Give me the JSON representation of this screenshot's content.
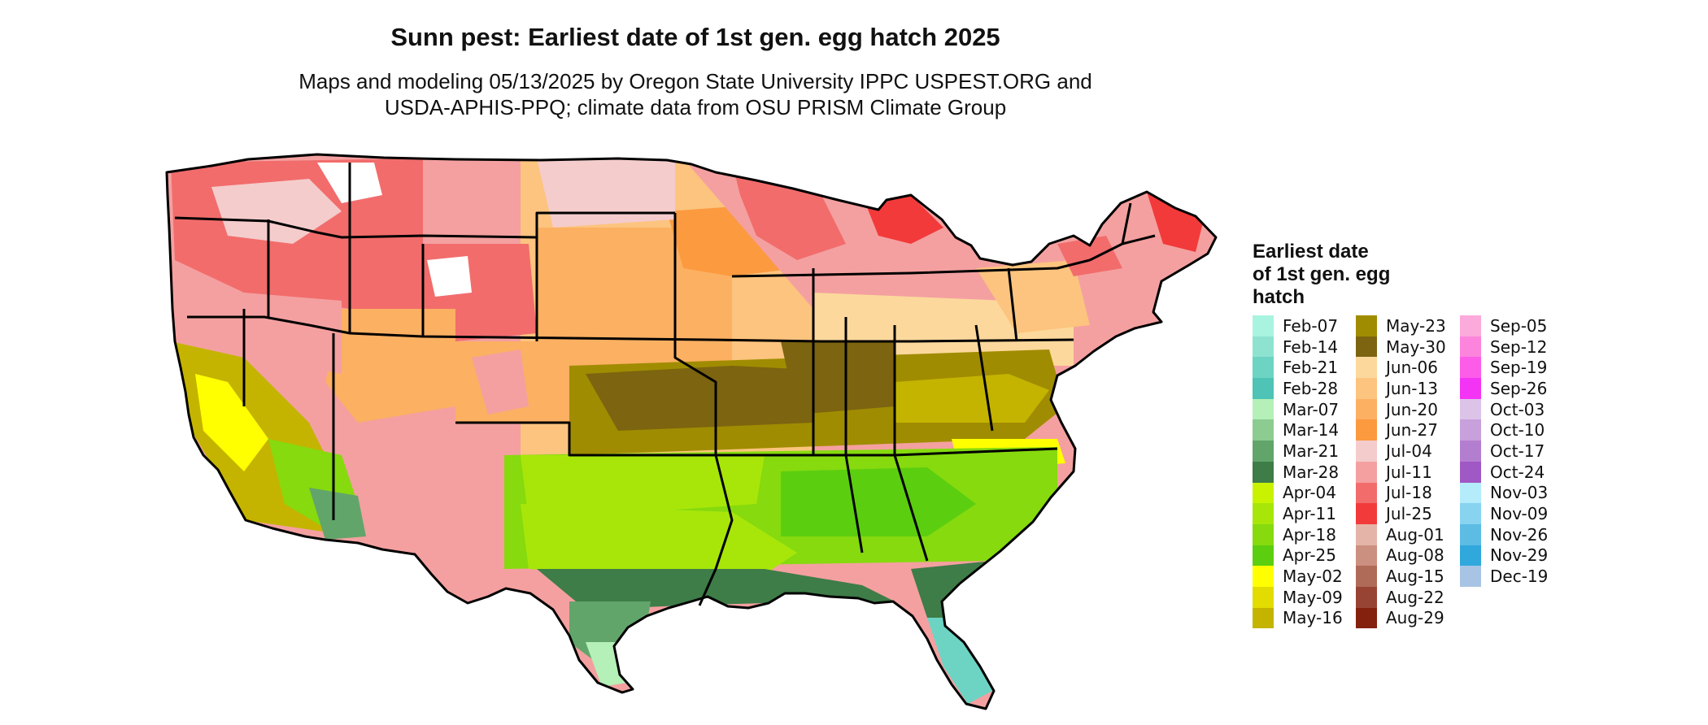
{
  "title": "Sunn pest: Earliest date of 1st gen. egg hatch 2025",
  "subtitle": [
    "Maps and modeling 05/13/2025 by Oregon State University IPPC USPEST.ORG and",
    "USDA-APHIS-PPQ; climate data from OSU PRISM Climate Group"
  ],
  "legend": {
    "title": [
      "Earliest date",
      "of 1st gen. egg",
      "hatch"
    ],
    "columns": [
      [
        {
          "label": "Feb-07",
          "color": "#a8f4e0"
        },
        {
          "label": "Feb-14",
          "color": "#8ee3d0"
        },
        {
          "label": "Feb-21",
          "color": "#6dd4c4"
        },
        {
          "label": "Feb-28",
          "color": "#4ec3b6"
        },
        {
          "label": "Mar-07",
          "color": "#b4f0b8"
        },
        {
          "label": "Mar-14",
          "color": "#8ccc90"
        },
        {
          "label": "Mar-21",
          "color": "#62a56a"
        },
        {
          "label": "Mar-28",
          "color": "#3e7c48"
        },
        {
          "label": "Apr-04",
          "color": "#c8f200"
        },
        {
          "label": "Apr-11",
          "color": "#a8e60a"
        },
        {
          "label": "Apr-18",
          "color": "#86da0e"
        },
        {
          "label": "Apr-25",
          "color": "#5cce10"
        },
        {
          "label": "May-02",
          "color": "#ffff00"
        },
        {
          "label": "May-09",
          "color": "#e2dc00"
        },
        {
          "label": "May-16",
          "color": "#c4b400"
        }
      ],
      [
        {
          "label": "May-23",
          "color": "#a08c00"
        },
        {
          "label": "May-30",
          "color": "#7c6410"
        },
        {
          "label": "Jun-06",
          "color": "#fcd89c"
        },
        {
          "label": "Jun-13",
          "color": "#fcc47e"
        },
        {
          "label": "Jun-20",
          "color": "#fcb062"
        },
        {
          "label": "Jun-27",
          "color": "#fc9a40"
        },
        {
          "label": "Jul-04",
          "color": "#f4cccc"
        },
        {
          "label": "Jul-11",
          "color": "#f4a0a0"
        },
        {
          "label": "Jul-18",
          "color": "#f26c6c"
        },
        {
          "label": "Jul-25",
          "color": "#f23a3a"
        },
        {
          "label": "Aug-01",
          "color": "#e4b4a8"
        },
        {
          "label": "Aug-08",
          "color": "#cc9080"
        },
        {
          "label": "Aug-15",
          "color": "#b06a58"
        },
        {
          "label": "Aug-22",
          "color": "#984434"
        },
        {
          "label": "Aug-29",
          "color": "#84200e"
        }
      ],
      [
        {
          "label": "Sep-05",
          "color": "#fcaadc"
        },
        {
          "label": "Sep-12",
          "color": "#fc84dc"
        },
        {
          "label": "Sep-19",
          "color": "#fc5ce8"
        },
        {
          "label": "Sep-26",
          "color": "#f434f4"
        },
        {
          "label": "Oct-03",
          "color": "#dcc4e8"
        },
        {
          "label": "Oct-10",
          "color": "#c8a0dc"
        },
        {
          "label": "Oct-17",
          "color": "#b47ed0"
        },
        {
          "label": "Oct-24",
          "color": "#a058c4"
        },
        {
          "label": "Nov-03",
          "color": "#b4ecfc"
        },
        {
          "label": "Nov-09",
          "color": "#88d4f0"
        },
        {
          "label": "Nov-26",
          "color": "#5cbce4"
        },
        {
          "label": "Nov-29",
          "color": "#30a8dc"
        },
        {
          "label": "Dec-19",
          "color": "#a8c4e4"
        }
      ]
    ]
  }
}
